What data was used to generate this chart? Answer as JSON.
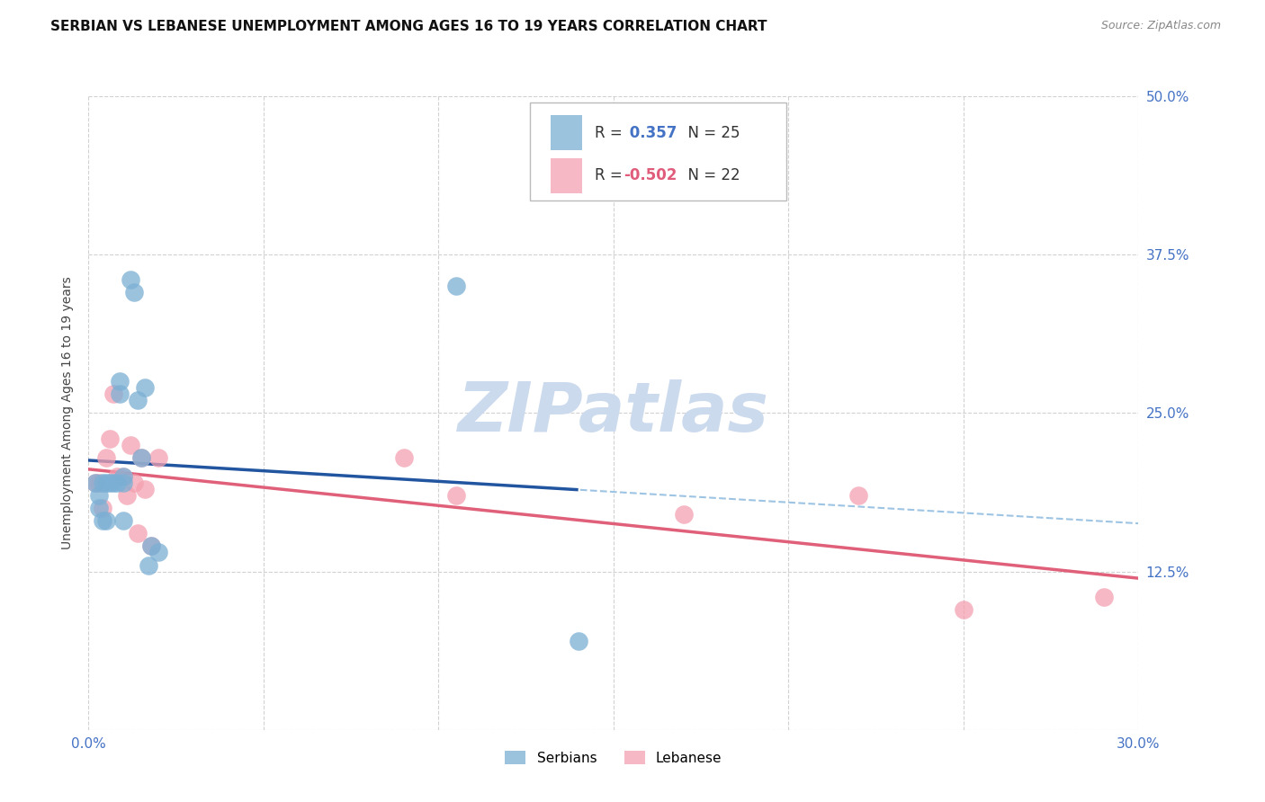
{
  "title": "SERBIAN VS LEBANESE UNEMPLOYMENT AMONG AGES 16 TO 19 YEARS CORRELATION CHART",
  "source": "Source: ZipAtlas.com",
  "ylabel": "Unemployment Among Ages 16 to 19 years",
  "xlim": [
    0.0,
    0.3
  ],
  "ylim": [
    0.0,
    0.5
  ],
  "xticks": [
    0.0,
    0.05,
    0.1,
    0.15,
    0.2,
    0.25,
    0.3
  ],
  "yticks": [
    0.0,
    0.125,
    0.25,
    0.375,
    0.5
  ],
  "xtick_labels": [
    "0.0%",
    "",
    "",
    "",
    "",
    "",
    "30.0%"
  ],
  "ytick_labels_right": [
    "",
    "12.5%",
    "25.0%",
    "37.5%",
    "50.0%"
  ],
  "serbian_R": 0.357,
  "serbian_N": 25,
  "lebanese_R": -0.502,
  "lebanese_N": 22,
  "serbian_color": "#7BAFD4",
  "lebanese_color": "#F4A0B0",
  "line_serbian_solid": "#2155A0",
  "line_serbian_dash": "#9EC4E4",
  "line_lebanese": "#E0607A",
  "serbian_x": [
    0.002,
    0.003,
    0.003,
    0.004,
    0.004,
    0.005,
    0.005,
    0.006,
    0.007,
    0.008,
    0.009,
    0.009,
    0.01,
    0.01,
    0.01,
    0.012,
    0.013,
    0.014,
    0.015,
    0.016,
    0.017,
    0.018,
    0.02,
    0.105,
    0.14
  ],
  "serbian_y": [
    0.195,
    0.185,
    0.175,
    0.195,
    0.165,
    0.195,
    0.165,
    0.195,
    0.195,
    0.195,
    0.275,
    0.265,
    0.195,
    0.2,
    0.165,
    0.355,
    0.345,
    0.26,
    0.215,
    0.27,
    0.13,
    0.145,
    0.14,
    0.35,
    0.07
  ],
  "lebanese_x": [
    0.002,
    0.003,
    0.004,
    0.005,
    0.006,
    0.007,
    0.008,
    0.01,
    0.011,
    0.012,
    0.013,
    0.014,
    0.015,
    0.016,
    0.018,
    0.02,
    0.09,
    0.105,
    0.17,
    0.22,
    0.25,
    0.29
  ],
  "lebanese_y": [
    0.195,
    0.195,
    0.175,
    0.215,
    0.23,
    0.265,
    0.2,
    0.2,
    0.185,
    0.225,
    0.195,
    0.155,
    0.215,
    0.19,
    0.145,
    0.215,
    0.215,
    0.185,
    0.17,
    0.185,
    0.095,
    0.105
  ],
  "background": "#ffffff",
  "grid_color": "#cccccc",
  "watermark": "ZIPatlas",
  "watermark_color": "#ccdaee"
}
